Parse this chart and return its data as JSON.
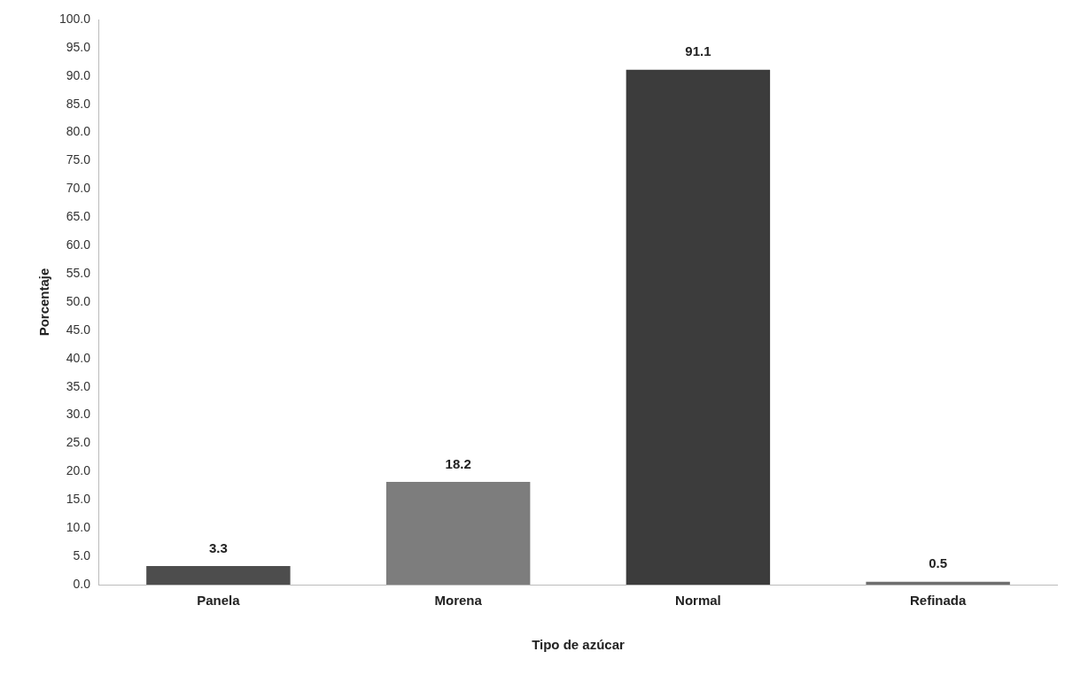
{
  "chart_data": {
    "type": "bar",
    "xlabel": "Tipo de azúcar",
    "ylabel": "Porcentaje",
    "categories": [
      "Panela",
      "Morena",
      "Normal",
      "Refinada"
    ],
    "values": [
      3.3,
      18.2,
      91.1,
      0.5
    ],
    "colors": [
      "#4d4d4d",
      "#7d7d7d",
      "#3c3c3c",
      "#6e6e6e"
    ],
    "ylim": [
      0,
      100
    ],
    "yticks": [
      {
        "value": 0,
        "label": "0.0"
      },
      {
        "value": 5,
        "label": "5.0"
      },
      {
        "value": 10,
        "label": "10.0"
      },
      {
        "value": 15,
        "label": "15.0"
      },
      {
        "value": 20,
        "label": "20.0"
      },
      {
        "value": 25,
        "label": "25.0"
      },
      {
        "value": 30,
        "label": "30.0"
      },
      {
        "value": 35,
        "label": "35.0"
      },
      {
        "value": 40,
        "label": "40.0"
      },
      {
        "value": 45,
        "label": "45.0"
      },
      {
        "value": 50,
        "label": "50.0"
      },
      {
        "value": 55,
        "label": "55.0"
      },
      {
        "value": 60,
        "label": "60.0"
      },
      {
        "value": 65,
        "label": "65.0"
      },
      {
        "value": 70,
        "label": "70.0"
      },
      {
        "value": 75,
        "label": "75.0"
      },
      {
        "value": 80,
        "label": "80.0"
      },
      {
        "value": 85,
        "label": "85.0"
      },
      {
        "value": 90,
        "label": "90.0"
      },
      {
        "value": 95,
        "label": "95.0"
      },
      {
        "value": 100,
        "label": "100.0"
      }
    ],
    "data_labels": true,
    "grid": false,
    "legend": false
  }
}
